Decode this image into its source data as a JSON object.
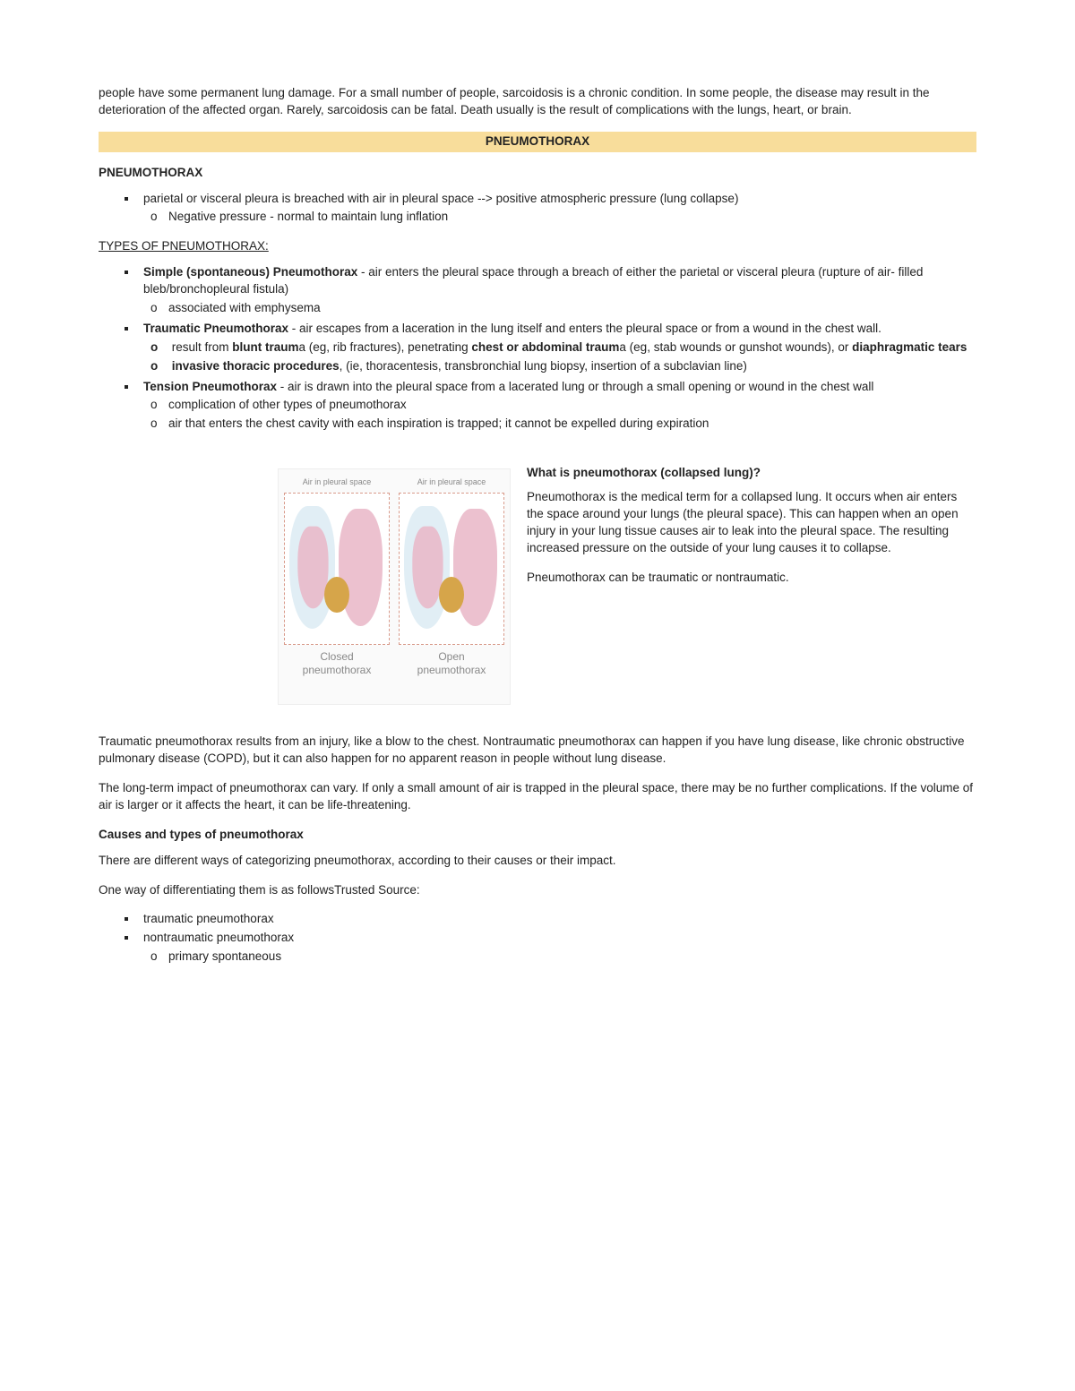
{
  "intro_para": "people have some permanent lung damage. For a small number of people, sarcoidosis is a chronic condition. In some people, the disease may result in the deterioration of the affected organ. Rarely, sarcoidosis can be fatal. Death usually is the result of complications with the lungs, heart, or brain.",
  "banner": "PNEUMOTHORAX",
  "h1": "PNEUMOTHORAX",
  "def_main": "parietal or visceral pleura is breached with air in pleural space --> positive atmospheric pressure (lung collapse)",
  "def_sub": "Negative pressure - normal to maintain lung inflation",
  "types_heading": "TYPES OF PNEUMOTHORAX:",
  "types": {
    "simple_b": "Simple (spontaneous) Pneumothorax",
    "simple_t": " - air enters the pleural space through a breach of either the parietal or visceral pleura (rupture of air- filled bleb/bronchopleural fistula)",
    "simple_sub": "associated with emphysema",
    "traum_b": "Traumatic Pneumothorax",
    "traum_t": " - air escapes from a laceration in the lung itself and enters the pleural space or from a wound in the chest wall.",
    "traum_s1_a": "result from ",
    "traum_s1_b1": "blunt traum",
    "traum_s1_c": "a (eg, rib fractures), penetrating ",
    "traum_s1_b2": "chest or abdominal traum",
    "traum_s1_d": "a (eg, stab wounds or gunshot wounds), or ",
    "traum_s1_b3": "diaphragmatic tears",
    "traum_s2_b": "invasive thoracic procedures",
    "traum_s2_t": ", (ie, thoracentesis, transbronchial lung biopsy, insertion of a subclavian line)",
    "tens_b": "Tension Pneumothorax",
    "tens_t": " - air is drawn into the pleural space from a lacerated lung or through a small opening or wound in the chest wall",
    "tens_s1": "complication of other types of pneumothorax",
    "tens_s2": "air that enters the chest cavity with each inspiration is trapped; it cannot be expelled during expiration"
  },
  "fig": {
    "top_left": "Air in pleural space",
    "top_right": "Air in pleural space",
    "bottom_left_1": "Closed",
    "bottom_left_2": "pneumothorax",
    "bottom_right_1": "Open",
    "bottom_right_2": "pneumothorax"
  },
  "wrap": {
    "heading": "What is pneumothorax (collapsed lung)?",
    "p1": "Pneumothorax is the medical term for a collapsed lung. It occurs when air enters the space around your lungs (the pleural space). This can happen when an open injury in your lung tissue causes air to leak into the pleural space. The resulting increased pressure on the outside of your lung causes it to collapse.",
    "p2": "Pneumothorax can be traumatic or nontraumatic."
  },
  "after": {
    "p1": "Traumatic pneumothorax results from an injury, like a blow to the chest. Nontraumatic pneumothorax can happen if you have lung disease, like chronic obstructive pulmonary disease (COPD), but it can also happen for no apparent reason in people without lung disease.",
    "p2": "The long-term impact of pneumothorax can vary. If only a small amount of air is trapped in the pleural space, there may be no further complications. If the volume of air is larger or it affects the heart, it can be life-threatening.",
    "h2": "Causes and types of pneumothorax",
    "p3": "There are different ways of categorizing pneumothorax, according to their causes or their impact.",
    "p4": "One way of differentiating them is as followsTrusted Source:",
    "li1": "traumatic pneumothorax",
    "li2": "nontraumatic pneumothorax",
    "li2s": "primary spontaneous"
  },
  "colors": {
    "banner_bg": "#f8dd9b",
    "text": "#222222",
    "fig_border": "#d89a8a",
    "lung_fill": "#e9b6c7",
    "pleural_fill": "#d9eaf2",
    "heart_fill": "#d6a54a"
  }
}
